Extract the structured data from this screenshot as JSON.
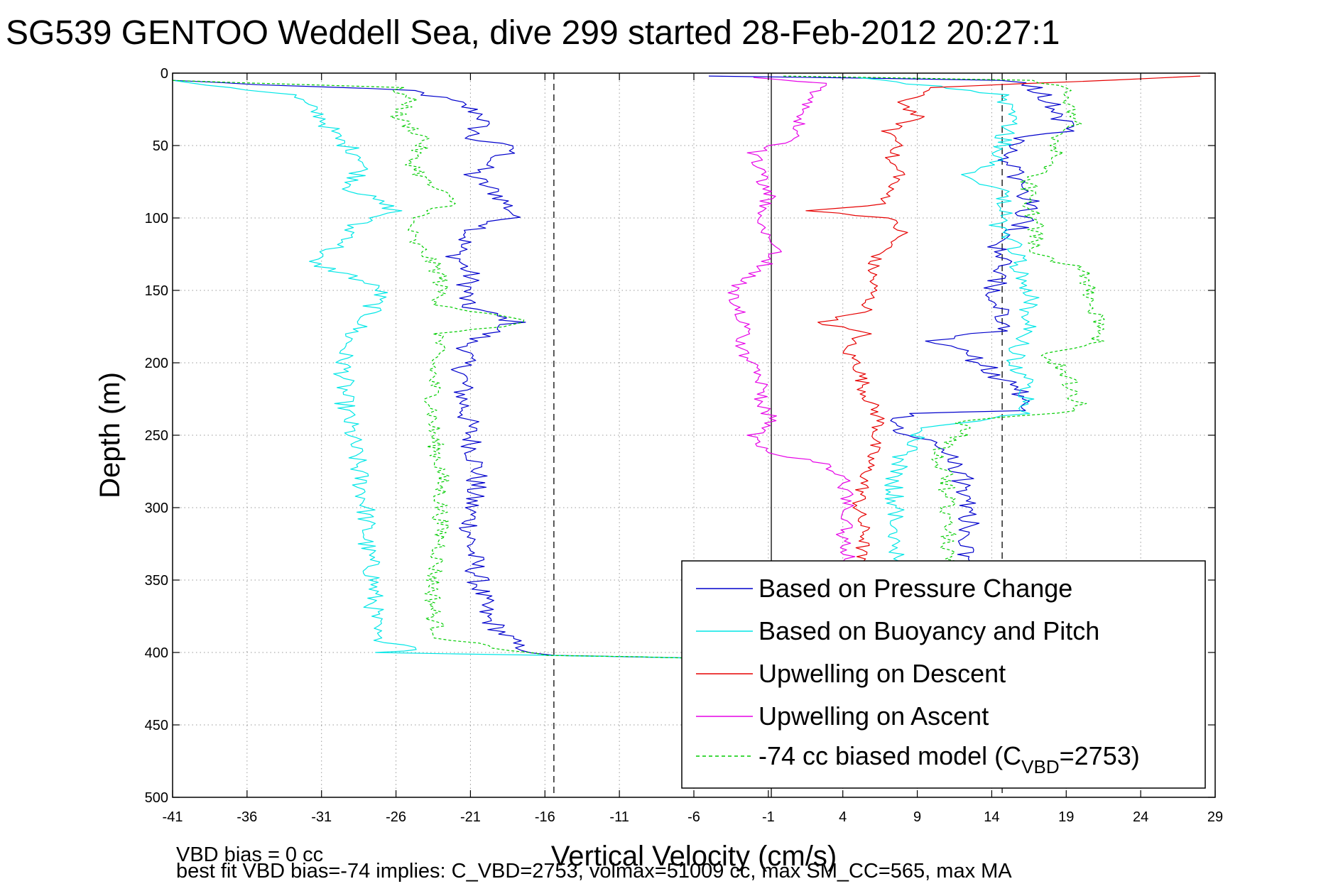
{
  "chart_data": {
    "type": "line",
    "title": "SG539 GENTOO Weddell Sea, dive 299 started 28-Feb-2012 20:27:1",
    "xlabel": "Vertical Velocity (cm/s)",
    "ylabel": "Depth (m)",
    "xlim": [
      -41,
      29
    ],
    "ylim": [
      0,
      500
    ],
    "y_reversed": true,
    "grid": true,
    "xticks": [
      -41,
      -36,
      -31,
      -26,
      -21,
      -16,
      -11,
      -6,
      -1,
      4,
      9,
      14,
      19,
      24,
      29
    ],
    "yticks": [
      0,
      50,
      100,
      150,
      200,
      250,
      300,
      350,
      400,
      450,
      500
    ],
    "reference_lines": [
      {
        "x": -15.4,
        "style": "dashed",
        "color": "#333333"
      },
      {
        "x": -0.8,
        "style": "solid",
        "color": "#333333"
      },
      {
        "x": 14.7,
        "style": "dashed",
        "color": "#333333"
      }
    ],
    "legend_position": "lower-right",
    "series": [
      {
        "name": "Based on Pressure Change",
        "color": "#0000cc",
        "style": "solid",
        "noise": 0.8,
        "descent": [
          [
            -41,
            5
          ],
          [
            -35,
            8
          ],
          [
            -25,
            12
          ],
          [
            -22,
            20
          ],
          [
            -20,
            30
          ],
          [
            -21,
            45
          ],
          [
            -18,
            52
          ],
          [
            -21,
            70
          ],
          [
            -19,
            85
          ],
          [
            -18,
            98
          ],
          [
            -21,
            110
          ],
          [
            -22,
            125
          ],
          [
            -21,
            140
          ],
          [
            -21.5,
            160
          ],
          [
            -18,
            172
          ],
          [
            -21,
            185
          ],
          [
            -21.5,
            200
          ],
          [
            -21.5,
            225
          ],
          [
            -21,
            250
          ],
          [
            -20.5,
            275
          ],
          [
            -21,
            300
          ],
          [
            -21,
            325
          ],
          [
            -20.5,
            350
          ],
          [
            -20,
            375
          ],
          [
            -18,
            395
          ],
          [
            -16,
            402
          ],
          [
            -10,
            403
          ],
          [
            -5,
            404
          ]
        ],
        "ascent": [
          [
            12,
            340
          ],
          [
            12.5,
            320
          ],
          [
            12.5,
            300
          ],
          [
            12,
            280
          ],
          [
            11,
            265
          ],
          [
            10,
            255
          ],
          [
            7.5,
            245
          ],
          [
            8,
            240
          ],
          [
            8,
            235
          ],
          [
            15.5,
            233
          ],
          [
            16,
            220
          ],
          [
            14.5,
            210
          ],
          [
            12.5,
            195
          ],
          [
            10,
            185
          ],
          [
            14.5,
            178
          ],
          [
            15,
            165
          ],
          [
            14,
            150
          ],
          [
            15,
            135
          ],
          [
            14.5,
            120
          ],
          [
            16,
            105
          ],
          [
            16.5,
            90
          ],
          [
            16,
            75
          ],
          [
            15,
            60
          ],
          [
            15.5,
            45
          ],
          [
            19,
            40
          ],
          [
            18.5,
            30
          ],
          [
            18,
            20
          ],
          [
            17,
            10
          ],
          [
            15,
            5
          ],
          [
            -5,
            2
          ]
        ]
      },
      {
        "name": "Based on Buoyancy and Pitch",
        "color": "#00e6e6",
        "style": "solid",
        "noise": 0.7,
        "descent": [
          [
            -41,
            5
          ],
          [
            -33,
            15
          ],
          [
            -31,
            30
          ],
          [
            -30,
            45
          ],
          [
            -28,
            60
          ],
          [
            -29,
            80
          ],
          [
            -26,
            95
          ],
          [
            -29,
            105
          ],
          [
            -29,
            115
          ],
          [
            -32,
            130
          ],
          [
            -29,
            140
          ],
          [
            -27,
            150
          ],
          [
            -28,
            170
          ],
          [
            -29,
            180
          ],
          [
            -29.5,
            195
          ],
          [
            -29.5,
            225
          ],
          [
            -29,
            250
          ],
          [
            -28.5,
            275
          ],
          [
            -28,
            300
          ],
          [
            -28,
            325
          ],
          [
            -27.5,
            350
          ],
          [
            -27.5,
            375
          ],
          [
            -27.5,
            390
          ],
          [
            -24,
            398
          ],
          [
            -27,
            400
          ],
          [
            -16,
            402
          ],
          [
            -10,
            403
          ],
          [
            -5,
            404
          ]
        ],
        "ascent": [
          [
            8,
            340
          ],
          [
            7.5,
            320
          ],
          [
            7.5,
            300
          ],
          [
            7.5,
            280
          ],
          [
            8,
            265
          ],
          [
            8.5,
            260
          ],
          [
            9,
            255
          ],
          [
            9,
            245
          ],
          [
            16.5,
            235
          ],
          [
            16.5,
            225
          ],
          [
            16.5,
            215
          ],
          [
            15.5,
            200
          ],
          [
            16,
            185
          ],
          [
            16.5,
            170
          ],
          [
            16.5,
            155
          ],
          [
            16,
            140
          ],
          [
            15.5,
            120
          ],
          [
            14.5,
            105
          ],
          [
            15,
            90
          ],
          [
            14.5,
            80
          ],
          [
            12.5,
            70
          ],
          [
            14.5,
            60
          ],
          [
            15,
            40
          ],
          [
            15,
            30
          ],
          [
            15,
            15
          ],
          [
            5,
            3
          ]
        ]
      },
      {
        "name": "Upwelling on Descent",
        "color": "#e60000",
        "style": "solid",
        "noise": 0.5,
        "descent": [
          [
            28,
            2
          ],
          [
            19,
            6
          ],
          [
            10,
            10
          ],
          [
            8,
            20
          ],
          [
            9,
            30
          ],
          [
            7,
            40
          ],
          [
            8,
            50
          ],
          [
            7,
            60
          ],
          [
            8,
            70
          ],
          [
            7,
            80
          ],
          [
            7,
            90
          ],
          [
            2,
            95
          ],
          [
            7,
            100
          ],
          [
            8,
            110
          ],
          [
            7,
            120
          ],
          [
            6,
            130
          ],
          [
            6,
            150
          ],
          [
            5.5,
            165
          ],
          [
            2.5,
            172
          ],
          [
            5.5,
            180
          ],
          [
            4,
            190
          ],
          [
            5,
            200
          ],
          [
            5.5,
            220
          ],
          [
            6.5,
            240
          ],
          [
            6,
            260
          ],
          [
            5.5,
            280
          ],
          [
            5,
            300
          ],
          [
            5.5,
            320
          ],
          [
            5,
            340
          ]
        ],
        "ascent": []
      },
      {
        "name": "Upwelling on Ascent",
        "color": "#e600e6",
        "style": "solid",
        "noise": 0.5,
        "descent": [],
        "ascent": [
          [
            4.5,
            340
          ],
          [
            4,
            320
          ],
          [
            4.5,
            300
          ],
          [
            4,
            280
          ],
          [
            3,
            270
          ],
          [
            -1,
            262
          ],
          [
            -2,
            250
          ],
          [
            -0.5,
            240
          ],
          [
            -1.5,
            230
          ],
          [
            -1.5,
            215
          ],
          [
            -2,
            200
          ],
          [
            -3,
            190
          ],
          [
            -2.5,
            175
          ],
          [
            -3,
            160
          ],
          [
            -3.5,
            150
          ],
          [
            -2,
            140
          ],
          [
            -0.5,
            125
          ],
          [
            -1,
            110
          ],
          [
            -1.5,
            100
          ],
          [
            -1,
            85
          ],
          [
            -1.5,
            70
          ],
          [
            -2,
            55
          ],
          [
            0.5,
            45
          ],
          [
            1,
            35
          ],
          [
            1.5,
            25
          ],
          [
            2,
            15
          ],
          [
            3,
            7
          ],
          [
            -2,
            3
          ]
        ]
      },
      {
        "name": "-74 cc biased model (C_VBD=2753)",
        "color": "#00cc00",
        "style": "dashed",
        "noise": 0.6,
        "descent": [
          [
            -41,
            5
          ],
          [
            -26,
            10
          ],
          [
            -25,
            20
          ],
          [
            -26,
            30
          ],
          [
            -24,
            45
          ],
          [
            -25,
            60
          ],
          [
            -24,
            75
          ],
          [
            -22,
            90
          ],
          [
            -25,
            100
          ],
          [
            -25,
            115
          ],
          [
            -24,
            125
          ],
          [
            -23,
            140
          ],
          [
            -23,
            160
          ],
          [
            -17,
            172
          ],
          [
            -23,
            180
          ],
          [
            -23.5,
            200
          ],
          [
            -23.5,
            225
          ],
          [
            -23.5,
            250
          ],
          [
            -23,
            275
          ],
          [
            -23,
            300
          ],
          [
            -23,
            325
          ],
          [
            -23.5,
            350
          ],
          [
            -23.5,
            375
          ],
          [
            -23,
            390
          ],
          [
            -19,
            397
          ],
          [
            -16,
            402
          ],
          [
            -10,
            403
          ],
          [
            -5,
            404
          ]
        ],
        "ascent": [
          [
            11,
            340
          ],
          [
            11,
            320
          ],
          [
            11,
            300
          ],
          [
            11,
            280
          ],
          [
            10.5,
            270
          ],
          [
            10.5,
            260
          ],
          [
            12,
            250
          ],
          [
            12,
            240
          ],
          [
            20,
            233
          ],
          [
            19.5,
            220
          ],
          [
            19,
            205
          ],
          [
            17.5,
            195
          ],
          [
            21,
            185
          ],
          [
            21,
            170
          ],
          [
            20.5,
            150
          ],
          [
            20,
            135
          ],
          [
            17,
            125
          ],
          [
            17,
            105
          ],
          [
            16.5,
            90
          ],
          [
            16.5,
            75
          ],
          [
            18.5,
            60
          ],
          [
            18,
            45
          ],
          [
            20,
            35
          ],
          [
            19.5,
            25
          ],
          [
            19,
            12
          ],
          [
            17,
            5
          ],
          [
            0,
            2
          ]
        ]
      }
    ],
    "legend": [
      {
        "label": "Based on Pressure Change",
        "color": "#0000cc",
        "dashed": false
      },
      {
        "label": "Based on Buoyancy and Pitch",
        "color": "#00e6e6",
        "dashed": false
      },
      {
        "label": "Upwelling on Descent",
        "color": "#e60000",
        "dashed": false
      },
      {
        "label": "Upwelling on Ascent",
        "color": "#e600e6",
        "dashed": false
      },
      {
        "label": "-74 cc biased model (C",
        "sub": "VBD",
        "tail": "=2753)",
        "color": "#00cc00",
        "dashed": true
      }
    ],
    "annotations": [
      "VBD bias = 0 cc",
      "best fit VBD bias=-74 implies: C_VBD=2753, volmax=51009 cc, max SM_CC=565, max MA"
    ]
  }
}
